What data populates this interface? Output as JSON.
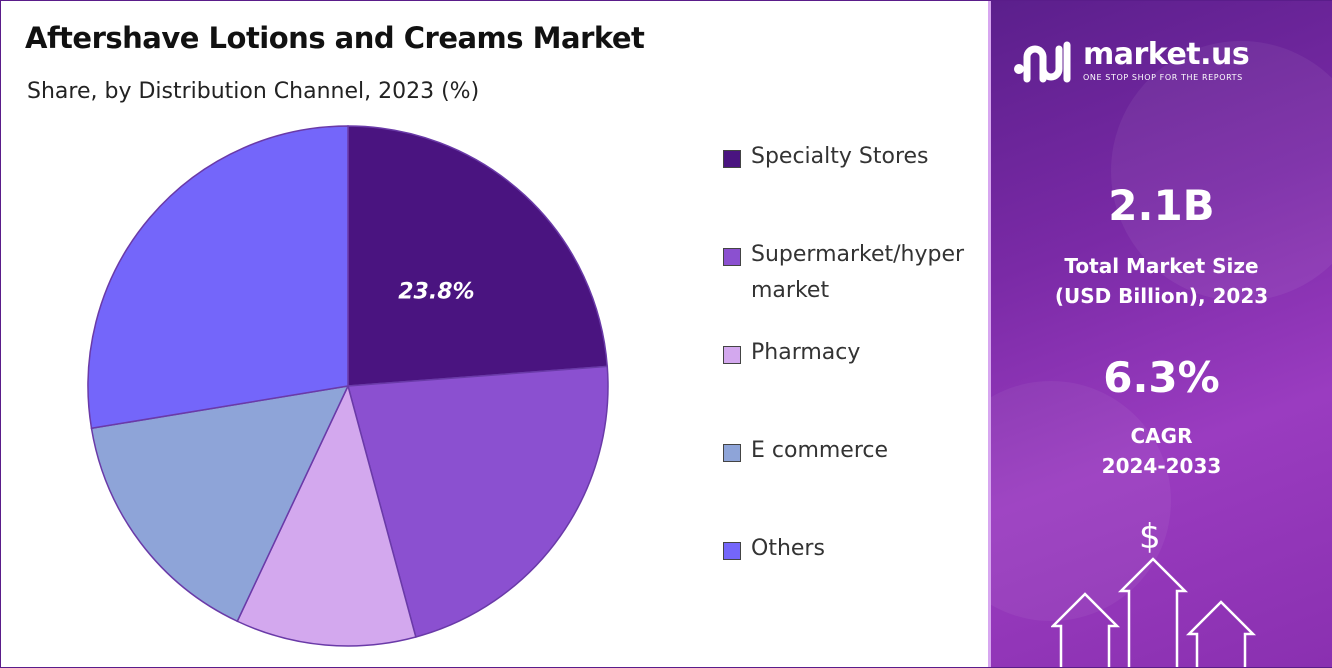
{
  "title": "Aftershave Lotions and Creams Market",
  "subtitle": "Share, by Distribution Channel, 2023 (%)",
  "chart_data": {
    "type": "pie",
    "title": "Aftershave Lotions and Creams Market",
    "subtitle": "Share, by Distribution Channel, 2023 (%)",
    "categories": [
      "Specialty Stores",
      "Supermarket/hypermarket",
      "Pharmacy",
      "E commerce",
      "Others"
    ],
    "values": [
      23.8,
      22.0,
      11.2,
      15.4,
      27.6
    ],
    "data_labels": [
      "23.8%",
      "",
      "",
      "",
      ""
    ],
    "colors": [
      "#4a1480",
      "#8b50d0",
      "#d3a8ee",
      "#8ea4d8",
      "#7466fa"
    ],
    "legend_position": "right"
  },
  "legend": [
    {
      "label": "Specialty Stores",
      "color": "#4a1480"
    },
    {
      "label": "Supermarket/hypermarket",
      "color": "#8b50d0"
    },
    {
      "label": "Pharmacy",
      "color": "#d3a8ee"
    },
    {
      "label": "E commerce",
      "color": "#8ea4d8"
    },
    {
      "label": "Others",
      "color": "#7466fa"
    }
  ],
  "brand": {
    "name": "market.us",
    "tagline": "ONE STOP SHOP FOR THE REPORTS",
    "icon": "market-us-logo-icon"
  },
  "stats": {
    "market_size_value": "2.1B",
    "market_size_label_1": "Total Market Size",
    "market_size_label_2": "(USD Billion), 2023",
    "cagr_value": "6.3%",
    "cagr_label_1": "CAGR",
    "cagr_label_2": "2024-2033"
  },
  "decor": {
    "dollar_symbol": "$",
    "icon": "growth-arrows-icon"
  }
}
